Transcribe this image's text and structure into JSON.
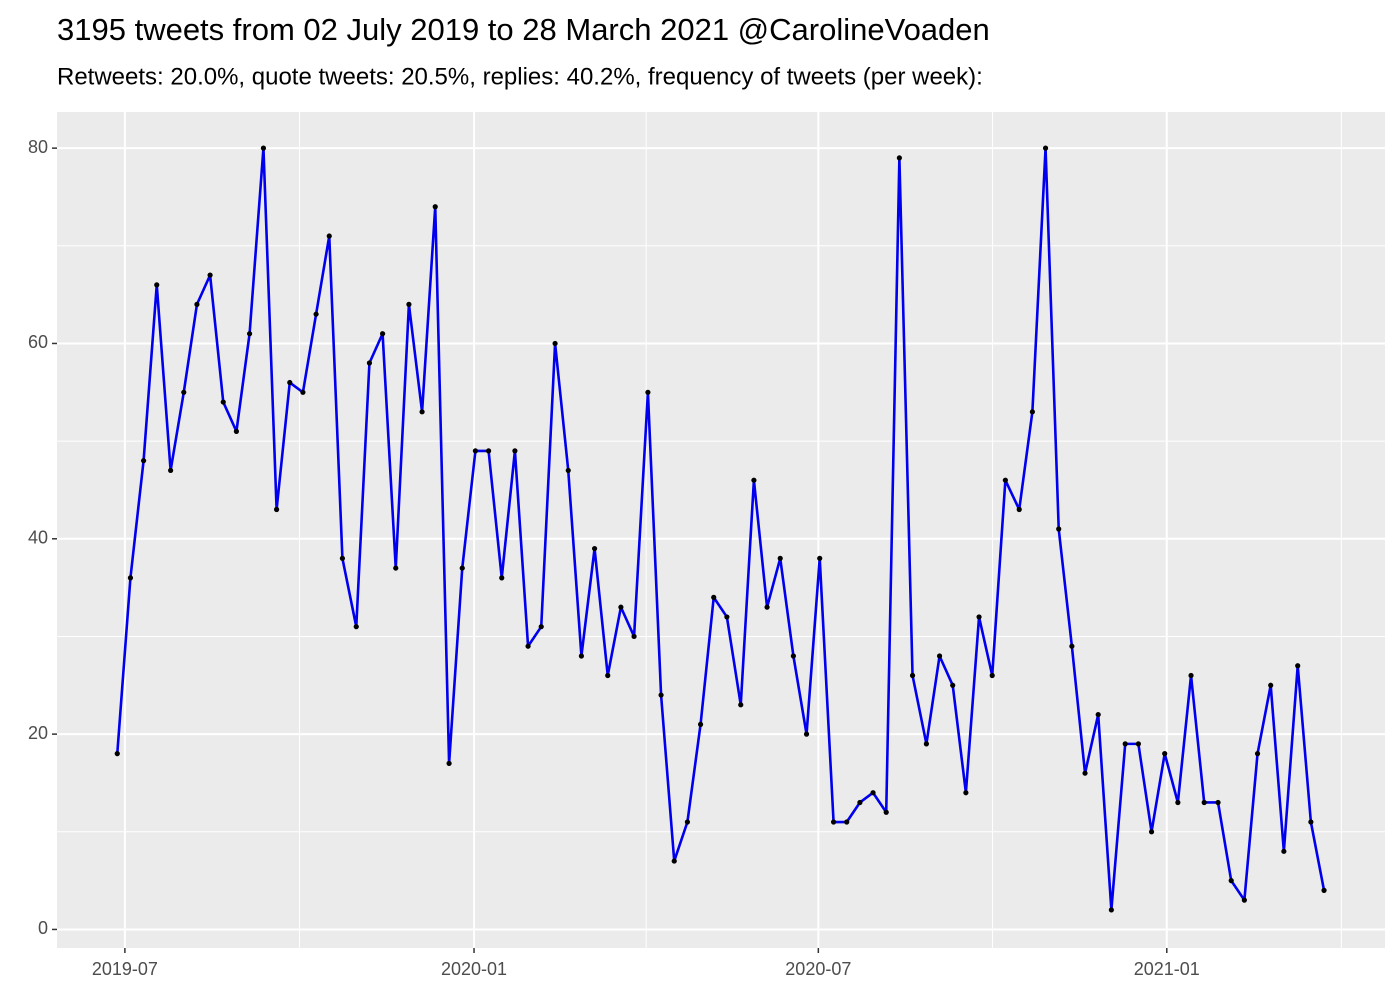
{
  "chart_data": {
    "type": "line",
    "title": "3195 tweets from 02 July 2019 to 28 March 2021 @CarolineVoaden",
    "subtitle": "Retweets: 20.0%, quote tweets: 20.5%, replies: 40.2%, frequency of tweets (per week):",
    "x": [
      2019.485,
      2019.504,
      2019.523,
      2019.542,
      2019.562,
      2019.581,
      2019.6,
      2019.619,
      2019.638,
      2019.657,
      2019.676,
      2019.696,
      2019.715,
      2019.734,
      2019.753,
      2019.772,
      2019.791,
      2019.81,
      2019.83,
      2019.849,
      2019.868,
      2019.887,
      2019.906,
      2019.925,
      2019.944,
      2019.964,
      2019.983,
      2020.002,
      2020.021,
      2020.04,
      2020.059,
      2020.078,
      2020.097,
      2020.117,
      2020.136,
      2020.155,
      2020.174,
      2020.193,
      2020.212,
      2020.231,
      2020.251,
      2020.27,
      2020.289,
      2020.308,
      2020.327,
      2020.346,
      2020.365,
      2020.385,
      2020.404,
      2020.423,
      2020.442,
      2020.461,
      2020.48,
      2020.499,
      2020.519,
      2020.538,
      2020.557,
      2020.576,
      2020.595,
      2020.614,
      2020.633,
      2020.653,
      2020.672,
      2020.691,
      2020.71,
      2020.729,
      2020.748,
      2020.767,
      2020.787,
      2020.806,
      2020.825,
      2020.844,
      2020.863,
      2020.882,
      2020.901,
      2020.92,
      2020.94,
      2020.959,
      2020.978,
      2020.997,
      2021.016,
      2021.035,
      2021.054,
      2021.074,
      2021.093,
      2021.112,
      2021.131,
      2021.15,
      2021.169,
      2021.189,
      2021.208,
      2021.227
    ],
    "series": [
      {
        "color": "#0000ee",
        "point_color": "#000000",
        "values": [
          18,
          36,
          48,
          66,
          47,
          55,
          64,
          67,
          54,
          51,
          61,
          80,
          43,
          56,
          55,
          63,
          71,
          38,
          31,
          58,
          61,
          37,
          64,
          53,
          74,
          17,
          37,
          49,
          49,
          36,
          49,
          29,
          31,
          60,
          47,
          28,
          39,
          26,
          33,
          30,
          55,
          24,
          7,
          11,
          21,
          34,
          32,
          23,
          46,
          33,
          38,
          28,
          20,
          38,
          11,
          11,
          13,
          14,
          12,
          79,
          26,
          19,
          28,
          25,
          14,
          32,
          26,
          46,
          43,
          53,
          80,
          41,
          29,
          16,
          22,
          2,
          19,
          19,
          10,
          18,
          13,
          26,
          13,
          13,
          5,
          3,
          18,
          25,
          8,
          27,
          11,
          4
        ]
      }
    ],
    "xlim": [
      2019.398,
      2021.315
    ],
    "xticks": [
      {
        "value": 2019.496,
        "label": "2019-07"
      },
      {
        "value": 2020.0,
        "label": "2020-01"
      },
      {
        "value": 2020.497,
        "label": "2020-07"
      },
      {
        "value": 2021.0,
        "label": "2021-01"
      }
    ],
    "ylim": [
      -1.9,
      83.7
    ],
    "yticks": [
      0,
      20,
      40,
      60,
      80
    ],
    "grid": true
  }
}
